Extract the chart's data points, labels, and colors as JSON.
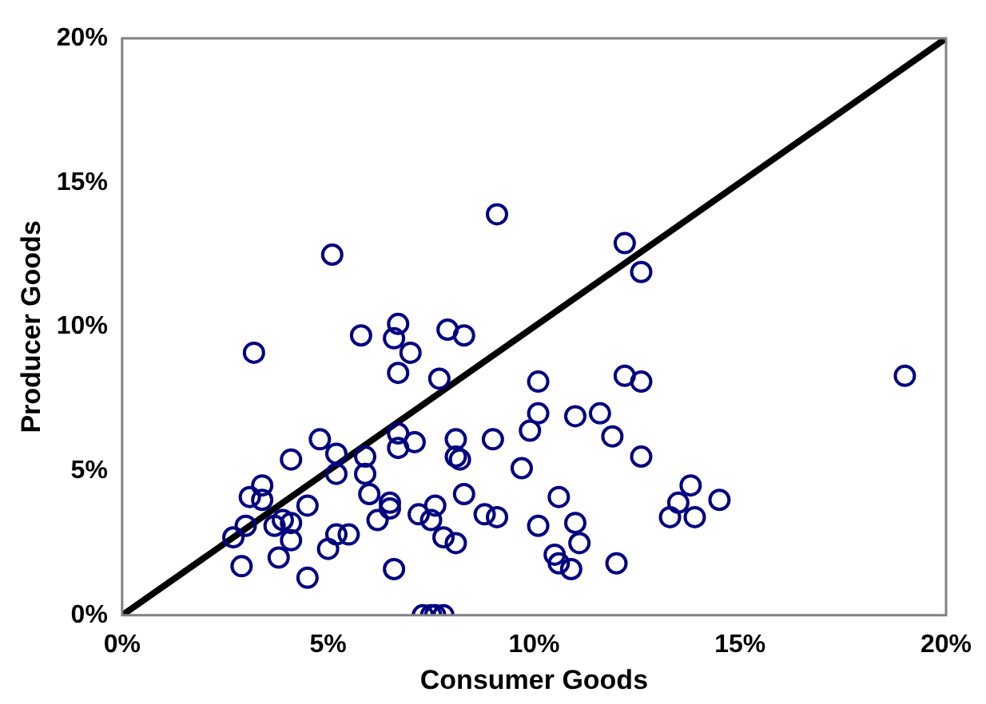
{
  "chart_data": {
    "type": "scatter",
    "xlabel": "Consumer Goods",
    "ylabel": "Producer Goods",
    "marker": "circle",
    "grid": false,
    "legend": false,
    "xlim": [
      0,
      20
    ],
    "ylim": [
      0,
      20
    ],
    "xticks": [
      {
        "value": 0,
        "label": "0%"
      },
      {
        "value": 5,
        "label": "5%"
      },
      {
        "value": 10,
        "label": "10%"
      },
      {
        "value": 15,
        "label": "15%"
      },
      {
        "value": 20,
        "label": "20%"
      }
    ],
    "yticks": [
      {
        "value": 0,
        "label": "0%"
      },
      {
        "value": 5,
        "label": "5%"
      },
      {
        "value": 10,
        "label": "10%"
      },
      {
        "value": 15,
        "label": "15%"
      },
      {
        "value": 20,
        "label": "20%"
      }
    ],
    "series": [
      {
        "color": "#000080",
        "x": [
          5.1,
          3.2,
          5.8,
          6.6,
          6.7,
          6.7,
          4.8,
          5.2,
          5.9,
          4.1,
          5.2,
          5.9,
          3.4,
          3.1,
          3.4,
          6.0,
          4.5,
          6.5,
          6.5,
          6.2,
          2.7,
          3.0,
          3.7,
          3.9,
          4.1,
          4.1,
          5.2,
          5.5,
          5.0,
          3.8,
          2.9,
          4.5,
          6.6,
          6.7,
          6.7,
          9.1,
          12.2,
          12.6,
          7.0,
          7.9,
          8.3,
          7.7,
          10.1,
          12.2,
          12.6,
          10.1,
          11.0,
          11.6,
          9.9,
          11.9,
          7.1,
          8.1,
          8.1,
          8.2,
          9.0,
          12.6,
          9.7,
          7.2,
          7.6,
          7.5,
          8.3,
          8.8,
          9.1,
          10.6,
          10.1,
          11.0,
          11.1,
          7.8,
          8.1,
          10.5,
          10.6,
          10.9,
          12.0,
          7.3,
          7.5,
          7.6,
          7.8,
          19.0,
          13.8,
          13.5,
          14.5,
          13.3,
          13.9
        ],
        "values": [
          12.5,
          9.1,
          9.7,
          9.6,
          10.1,
          8.4,
          6.1,
          5.6,
          5.5,
          5.4,
          4.9,
          4.9,
          4.5,
          4.1,
          4.0,
          4.2,
          3.8,
          3.9,
          3.7,
          3.3,
          2.7,
          3.1,
          3.1,
          3.3,
          3.2,
          2.6,
          2.8,
          2.8,
          2.3,
          2.0,
          1.7,
          1.3,
          1.6,
          6.3,
          5.8,
          13.9,
          12.9,
          11.9,
          9.1,
          9.9,
          9.7,
          8.2,
          8.1,
          8.3,
          8.1,
          7.0,
          6.9,
          7.0,
          6.4,
          6.2,
          6.0,
          6.1,
          5.5,
          5.4,
          6.1,
          5.5,
          5.1,
          3.5,
          3.8,
          3.3,
          4.2,
          3.5,
          3.4,
          4.1,
          3.1,
          3.2,
          2.5,
          2.7,
          2.5,
          2.1,
          1.8,
          1.6,
          1.8,
          0,
          0,
          0,
          0,
          8.3,
          4.5,
          3.9,
          4.0,
          3.4,
          3.4
        ]
      },
      {
        "type": "line",
        "color": "#000000",
        "marker": "none",
        "x": [
          0,
          20
        ],
        "values": [
          0,
          20
        ]
      }
    ]
  }
}
